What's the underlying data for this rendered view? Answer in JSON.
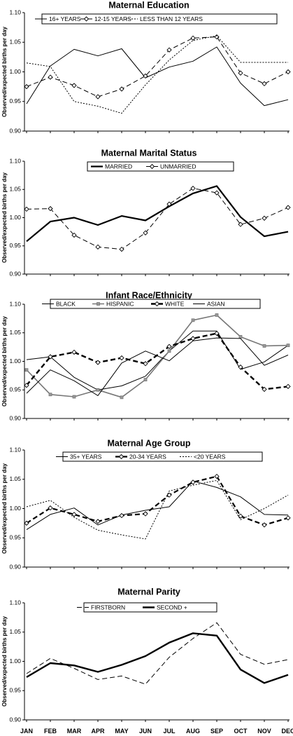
{
  "figure": {
    "x_labels": [
      "JAN",
      "FEB",
      "MAR",
      "APR",
      "MAY",
      "JUN",
      "JUL",
      "AUG",
      "SEP",
      "OCT",
      "NOV",
      "DEC"
    ]
  },
  "chart_data": [
    {
      "type": "line",
      "title": "Maternal Education",
      "ylabel": "Observed/expected births per day",
      "ylim": [
        0.9,
        1.1
      ],
      "yticks": [
        "0.90",
        "0.95",
        "1.00",
        "1.05",
        "1.10"
      ],
      "categories": [
        "JAN",
        "FEB",
        "MAR",
        "APR",
        "MAY",
        "JUN",
        "JUL",
        "AUG",
        "SEP",
        "OCT",
        "NOV",
        "DEC"
      ],
      "legend_position": "top",
      "series": [
        {
          "name": "16+ YEARS",
          "style": "solid",
          "marker": "none",
          "width": 1,
          "values": [
            0.946,
            1.01,
            1.038,
            1.027,
            1.039,
            0.99,
            1.008,
            1.018,
            1.042,
            0.981,
            0.943,
            0.953
          ]
        },
        {
          "name": "12-15 YEARS",
          "style": "dashed",
          "marker": "diamond",
          "width": 1,
          "values": [
            0.975,
            0.991,
            0.977,
            0.958,
            0.971,
            0.993,
            1.037,
            1.057,
            1.059,
            0.998,
            0.98,
            1.0
          ]
        },
        {
          "name": "LESS THAN 12 YEARS",
          "style": "dotted",
          "marker": "none",
          "width": 1,
          "values": [
            1.015,
            1.009,
            0.95,
            0.942,
            0.93,
            0.978,
            1.02,
            1.053,
            1.061,
            1.016,
            1.016,
            1.016
          ]
        }
      ]
    },
    {
      "type": "line",
      "title": "Maternal Marital Status",
      "ylabel": "Observed/expected births per day",
      "ylim": [
        0.9,
        1.1
      ],
      "yticks": [
        "0.90",
        "0.95",
        "1.00",
        "1.05",
        "1.10"
      ],
      "categories": [
        "JAN",
        "FEB",
        "MAR",
        "APR",
        "MAY",
        "JUN",
        "JUL",
        "AUG",
        "SEP",
        "OCT",
        "NOV",
        "DEC"
      ],
      "legend_position": "top",
      "series": [
        {
          "name": "MARRIED",
          "style": "solid",
          "marker": "none",
          "width": 2.2,
          "values": [
            0.958,
            0.993,
            1.0,
            0.987,
            1.003,
            0.995,
            1.02,
            1.043,
            1.056,
            1.001,
            0.967,
            0.975
          ]
        },
        {
          "name": "UNMARRIED",
          "style": "dashed",
          "marker": "diamond",
          "width": 1,
          "values": [
            1.015,
            1.016,
            0.969,
            0.948,
            0.944,
            0.973,
            1.024,
            1.052,
            1.044,
            0.988,
            0.999,
            1.018
          ]
        }
      ]
    },
    {
      "type": "line",
      "title": "Infant Race/Ethnicity",
      "ylabel": "Observed/expected births per day",
      "ylim": [
        0.9,
        1.1
      ],
      "yticks": [
        "0.90",
        "0.95",
        "1.00",
        "1.05",
        "1.10"
      ],
      "categories": [
        "JAN",
        "FEB",
        "MAR",
        "APR",
        "MAY",
        "JUN",
        "JUL",
        "AUG",
        "SEP",
        "OCT",
        "NOV",
        "DEC"
      ],
      "legend_position": "top",
      "series": [
        {
          "name": "BLACK",
          "style": "solid",
          "marker": "none",
          "width": 1,
          "values": [
            1.003,
            1.008,
            0.972,
            0.95,
            0.957,
            0.974,
            1.018,
            1.053,
            1.053,
            0.986,
            0.999,
            1.028
          ]
        },
        {
          "name": "HISPANIC",
          "style": "solid",
          "marker": "square",
          "width": 1.6,
          "color": "#777777",
          "values": [
            0.985,
            0.942,
            0.938,
            0.95,
            0.937,
            0.968,
            1.018,
            1.072,
            1.081,
            1.043,
            1.027,
            1.028
          ]
        },
        {
          "name": "WHITE",
          "style": "dashed",
          "marker": "diamond",
          "width": 2.4,
          "values": [
            0.958,
            1.008,
            1.016,
            0.998,
            1.006,
            0.996,
            1.026,
            1.04,
            1.049,
            0.99,
            0.951,
            0.956
          ]
        },
        {
          "name": "ASIAN",
          "style": "solid",
          "marker": "none",
          "width": 1,
          "values": [
            0.944,
            0.985,
            0.966,
            0.94,
            0.997,
            1.018,
            1.001,
            1.036,
            1.041,
            1.04,
            0.993,
            1.011
          ]
        }
      ]
    },
    {
      "type": "line",
      "title": "Maternal Age Group",
      "ylabel": "Observed/expected births per day",
      "ylim": [
        0.9,
        1.1
      ],
      "yticks": [
        "0.90",
        "0.95",
        "1.00",
        "1.05",
        "1.10"
      ],
      "categories": [
        "JAN",
        "FEB",
        "MAR",
        "APR",
        "MAY",
        "JUN",
        "JUL",
        "AUG",
        "SEP",
        "OCT",
        "NOV",
        "DEC"
      ],
      "legend_position": "top",
      "series": [
        {
          "name": "35+ YEARS",
          "style": "solid",
          "marker": "none",
          "width": 1,
          "values": [
            0.964,
            0.99,
            1.001,
            0.972,
            0.989,
            0.997,
            1.003,
            1.047,
            1.036,
            1.02,
            0.99,
            0.989
          ]
        },
        {
          "name": "20-34 YEARS",
          "style": "dashed",
          "marker": "diamond",
          "width": 2.2,
          "values": [
            0.975,
            1.001,
            0.99,
            0.978,
            0.988,
            0.991,
            1.023,
            1.045,
            1.055,
            0.987,
            0.972,
            0.984
          ]
        },
        {
          "name": "<20 YEARS",
          "style": "dotted",
          "marker": "none",
          "width": 1,
          "values": [
            1.003,
            1.014,
            0.985,
            0.963,
            0.955,
            0.948,
            1.03,
            1.04,
            1.048,
            0.981,
            1.0,
            1.023
          ]
        }
      ]
    },
    {
      "type": "line",
      "title": "Maternal Parity",
      "ylabel": "Observed/expected births per day",
      "ylim": [
        0.9,
        1.1
      ],
      "yticks": [
        "0.90",
        "0.95",
        "1.00",
        "1.05",
        "1.10"
      ],
      "categories": [
        "JAN",
        "FEB",
        "MAR",
        "APR",
        "MAY",
        "JUN",
        "JUL",
        "AUG",
        "SEP",
        "OCT",
        "NOV",
        "DEC"
      ],
      "legend_position": "top",
      "series": [
        {
          "name": "FIRSTBORN",
          "style": "dashed",
          "marker": "none",
          "width": 1,
          "values": [
            0.979,
            1.005,
            0.988,
            0.969,
            0.975,
            0.961,
            1.007,
            1.039,
            1.066,
            1.012,
            0.995,
            1.003
          ]
        },
        {
          "name": "SECOND +",
          "style": "solid",
          "marker": "none",
          "width": 2.4,
          "values": [
            0.973,
            0.997,
            0.993,
            0.982,
            0.994,
            1.009,
            1.032,
            1.048,
            1.044,
            0.986,
            0.963,
            0.977
          ]
        }
      ]
    }
  ]
}
